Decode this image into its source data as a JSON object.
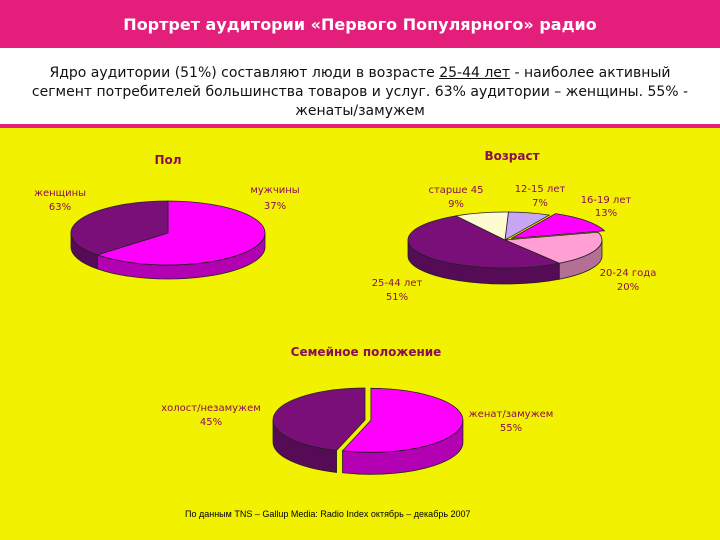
{
  "title": "Портрет  аудитории «Первого Популярного» радио",
  "summary": {
    "before": "Ядро аудитории (51%) составляют люди в возрасте ",
    "underlined": "25-44 лет",
    "after": " - наиболее активный сегмент потребителей большинства товаров и услуг. 63% аудитории – женщины. 55% - женаты/замужем"
  },
  "source": "По данным TNS – Gallup Media: Radio Index октябрь – декабрь 2007",
  "chart_data": [
    {
      "type": "pie",
      "title": "Пол",
      "slices": [
        {
          "label": "женщины",
          "value": 63,
          "value_label": "63%",
          "color": "#ff00ff"
        },
        {
          "label": "мужчины",
          "value": 37,
          "value_label": "37%",
          "color": "#7a0f7a"
        }
      ]
    },
    {
      "type": "pie",
      "title": "Возраст",
      "slices": [
        {
          "label": "12-15 лет",
          "value": 7,
          "value_label": "7%",
          "color": "#c9a6f5"
        },
        {
          "label": "16-19 лет",
          "value": 13,
          "value_label": "13%",
          "color": "#ff00ff"
        },
        {
          "label": "20-24 года",
          "value": 20,
          "value_label": "20%",
          "color": "#ff9fd4"
        },
        {
          "label": "25-44 лет",
          "value": 51,
          "value_label": "51%",
          "color": "#7a0f7a"
        },
        {
          "label": "старше 45",
          "value": 9,
          "value_label": "9%",
          "color": "#fffbd0"
        }
      ]
    },
    {
      "type": "pie",
      "title": "Семейное положение",
      "slices": [
        {
          "label": "женат/замужем",
          "value": 55,
          "value_label": "55%",
          "color": "#ff00ff"
        },
        {
          "label": "холост/незамужем",
          "value": 45,
          "value_label": "45%",
          "color": "#7a0f7a"
        }
      ]
    }
  ]
}
